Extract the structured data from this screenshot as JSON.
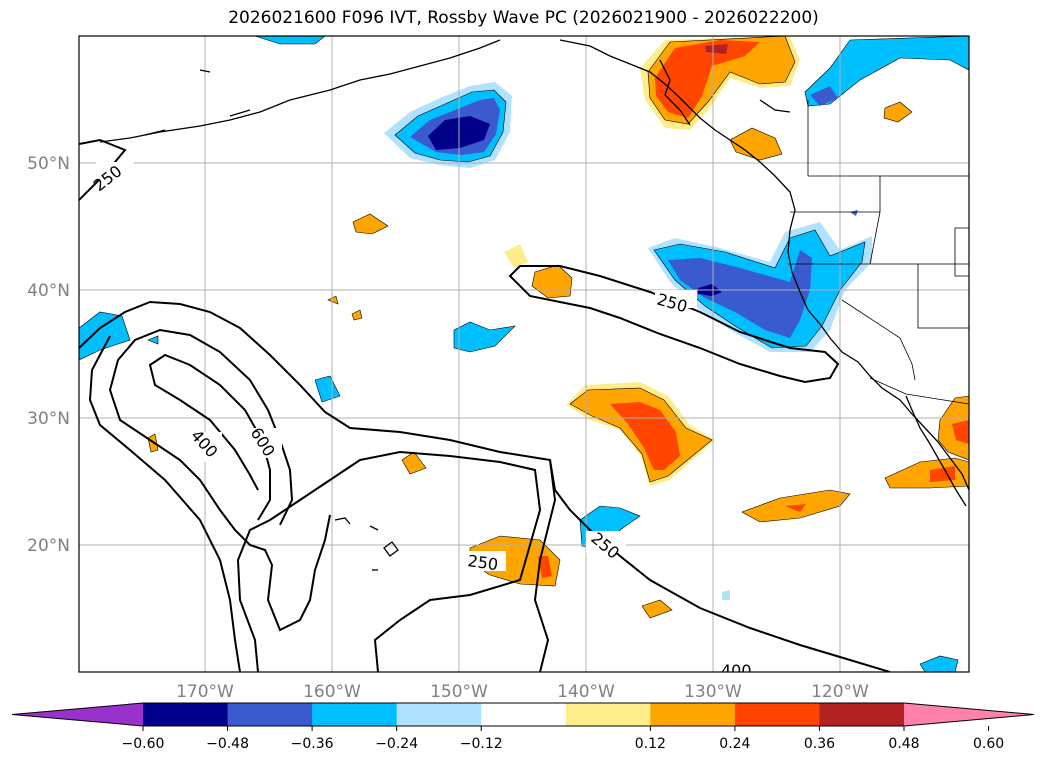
{
  "title": "2026021600 F096 IVT, Rossby Wave PC (2026021900 - 2026022200)",
  "map": {
    "lat_labels": [
      "50°N",
      "40°N",
      "30°N",
      "20°N"
    ],
    "lon_labels": [
      "170°W",
      "160°W",
      "150°W",
      "140°W",
      "130°W",
      "120°W"
    ],
    "contour_labels": [
      "250",
      "250",
      "250",
      "250",
      "400",
      "400",
      "600"
    ]
  },
  "colorbar": {
    "ticks": [
      "−0.60",
      "−0.48",
      "−0.36",
      "−0.24",
      "−0.12",
      "0.12",
      "0.24",
      "0.36",
      "0.48",
      "0.60"
    ],
    "colors": [
      "#9932cc",
      "#00008b",
      "#3a5bcd",
      "#00bfff",
      "#b0e2ff",
      "#ffffff",
      "#ffec8b",
      "#ffa500",
      "#ff4500",
      "#b22222",
      "#ff82ab"
    ]
  }
}
